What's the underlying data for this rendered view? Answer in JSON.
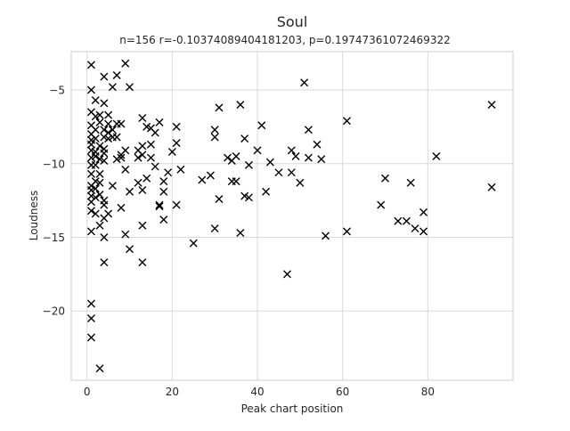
{
  "chart_data": {
    "type": "scatter",
    "title": "Soul",
    "subtitle": "n=156 r=-0.10374089404181203, p=0.19747361072469322",
    "xlabel": "Peak chart position",
    "ylabel": "Loudness",
    "xlim": [
      -3.7,
      100.0
    ],
    "ylim": [
      -24.7,
      -2.4
    ],
    "xticks": [
      0,
      20,
      40,
      60,
      80
    ],
    "yticks": [
      -20,
      -15,
      -10,
      -5
    ],
    "grid": true,
    "marker": "x",
    "marker_color": "#000000",
    "points": [
      [
        1,
        -3.3
      ],
      [
        1,
        -5
      ],
      [
        1,
        -6.5
      ],
      [
        1,
        -7.4
      ],
      [
        1,
        -8
      ],
      [
        1,
        -8.4
      ],
      [
        1,
        -8.7
      ],
      [
        1,
        -9.1
      ],
      [
        1,
        -9.6
      ],
      [
        1,
        -10.1
      ],
      [
        1,
        -10.7
      ],
      [
        1,
        -11.5
      ],
      [
        1,
        -11.8
      ],
      [
        1,
        -12.2
      ],
      [
        1,
        -12.6
      ],
      [
        1,
        -13.2
      ],
      [
        1,
        -14.6
      ],
      [
        1,
        -19.5
      ],
      [
        1,
        -20.5
      ],
      [
        1,
        -21.8
      ],
      [
        2,
        -5.7
      ],
      [
        2,
        -6.8
      ],
      [
        2,
        -7.7
      ],
      [
        2,
        -8.3
      ],
      [
        2,
        -9.2
      ],
      [
        2,
        -9.5
      ],
      [
        2,
        -10.1
      ],
      [
        2,
        -11.2
      ],
      [
        2,
        -11.7
      ],
      [
        2,
        -12.3
      ],
      [
        2,
        -13.4
      ],
      [
        3,
        -6.7
      ],
      [
        3,
        -7.2
      ],
      [
        3,
        -8.8
      ],
      [
        3,
        -9.7
      ],
      [
        3,
        -10.7
      ],
      [
        3,
        -11.3
      ],
      [
        3,
        -12.1
      ],
      [
        3,
        -14.2
      ],
      [
        3,
        -23.9
      ],
      [
        4,
        -4.1
      ],
      [
        4,
        -5.9
      ],
      [
        4,
        -7.7
      ],
      [
        4,
        -8.2
      ],
      [
        4,
        -9
      ],
      [
        4,
        -9.3
      ],
      [
        4,
        -9.8
      ],
      [
        4,
        -12.5
      ],
      [
        4,
        -12.8
      ],
      [
        4,
        -13.7
      ],
      [
        4,
        -15
      ],
      [
        4,
        -16.7
      ],
      [
        5,
        -6.7
      ],
      [
        5,
        -7.3
      ],
      [
        5,
        -7.9
      ],
      [
        5,
        -8.3
      ],
      [
        5,
        -13.4
      ],
      [
        6,
        -4.8
      ],
      [
        6,
        -7.7
      ],
      [
        6,
        -8.2
      ],
      [
        6,
        -11.5
      ],
      [
        7,
        -4
      ],
      [
        7,
        -7.3
      ],
      [
        7,
        -8.2
      ],
      [
        7,
        -9.7
      ],
      [
        8,
        -7.3
      ],
      [
        8,
        -9.4
      ],
      [
        8,
        -9.6
      ],
      [
        8,
        -13
      ],
      [
        9,
        -3.2
      ],
      [
        9,
        -9.1
      ],
      [
        9,
        -10.4
      ],
      [
        9,
        -14.8
      ],
      [
        10,
        -4.8
      ],
      [
        10,
        -11.9
      ],
      [
        10,
        -15.8
      ],
      [
        12,
        -9.1
      ],
      [
        12,
        -9.6
      ],
      [
        12,
        -11.3
      ],
      [
        13,
        -6.9
      ],
      [
        13,
        -8.8
      ],
      [
        13,
        -9.4
      ],
      [
        13,
        -11.8
      ],
      [
        13,
        -14.2
      ],
      [
        13,
        -16.7
      ],
      [
        14,
        -7.5
      ],
      [
        14,
        -11
      ],
      [
        15,
        -7.6
      ],
      [
        15,
        -8.7
      ],
      [
        15,
        -9.6
      ],
      [
        16,
        -7.9
      ],
      [
        16,
        -10.2
      ],
      [
        17,
        -7.2
      ],
      [
        17,
        -12.8
      ],
      [
        17,
        -12.9
      ],
      [
        18,
        -11.2
      ],
      [
        18,
        -11.9
      ],
      [
        18,
        -13.8
      ],
      [
        19,
        -10.6
      ],
      [
        20,
        -9.2
      ],
      [
        21,
        -7.5
      ],
      [
        21,
        -8.6
      ],
      [
        21,
        -12.8
      ],
      [
        22,
        -10.4
      ],
      [
        25,
        -15.4
      ],
      [
        27,
        -11.1
      ],
      [
        29,
        -10.8
      ],
      [
        30,
        -7.7
      ],
      [
        30,
        -8.2
      ],
      [
        30,
        -14.4
      ],
      [
        31,
        -6.2
      ],
      [
        31,
        -12.4
      ],
      [
        33,
        -9.6
      ],
      [
        34,
        -9.8
      ],
      [
        34,
        -11.2
      ],
      [
        35,
        -9.5
      ],
      [
        35,
        -11.2
      ],
      [
        36,
        -6
      ],
      [
        36,
        -14.7
      ],
      [
        37,
        -8.3
      ],
      [
        37,
        -12.2
      ],
      [
        38,
        -10.1
      ],
      [
        38,
        -12.3
      ],
      [
        40,
        -9.1
      ],
      [
        41,
        -7.4
      ],
      [
        42,
        -11.9
      ],
      [
        43,
        -9.9
      ],
      [
        45,
        -10.6
      ],
      [
        47,
        -17.5
      ],
      [
        48,
        -9.1
      ],
      [
        48,
        -10.6
      ],
      [
        49,
        -9.5
      ],
      [
        50,
        -11.3
      ],
      [
        51,
        -4.5
      ],
      [
        52,
        -7.7
      ],
      [
        52,
        -9.6
      ],
      [
        54,
        -8.7
      ],
      [
        55,
        -9.7
      ],
      [
        56,
        -14.9
      ],
      [
        61,
        -7.1
      ],
      [
        61,
        -14.6
      ],
      [
        69,
        -12.8
      ],
      [
        70,
        -11
      ],
      [
        73,
        -13.9
      ],
      [
        75,
        -13.9
      ],
      [
        76,
        -11.3
      ],
      [
        77,
        -14.4
      ],
      [
        79,
        -13.3
      ],
      [
        79,
        -14.6
      ],
      [
        82,
        -9.5
      ],
      [
        95,
        -6
      ],
      [
        95,
        -11.6
      ]
    ]
  }
}
